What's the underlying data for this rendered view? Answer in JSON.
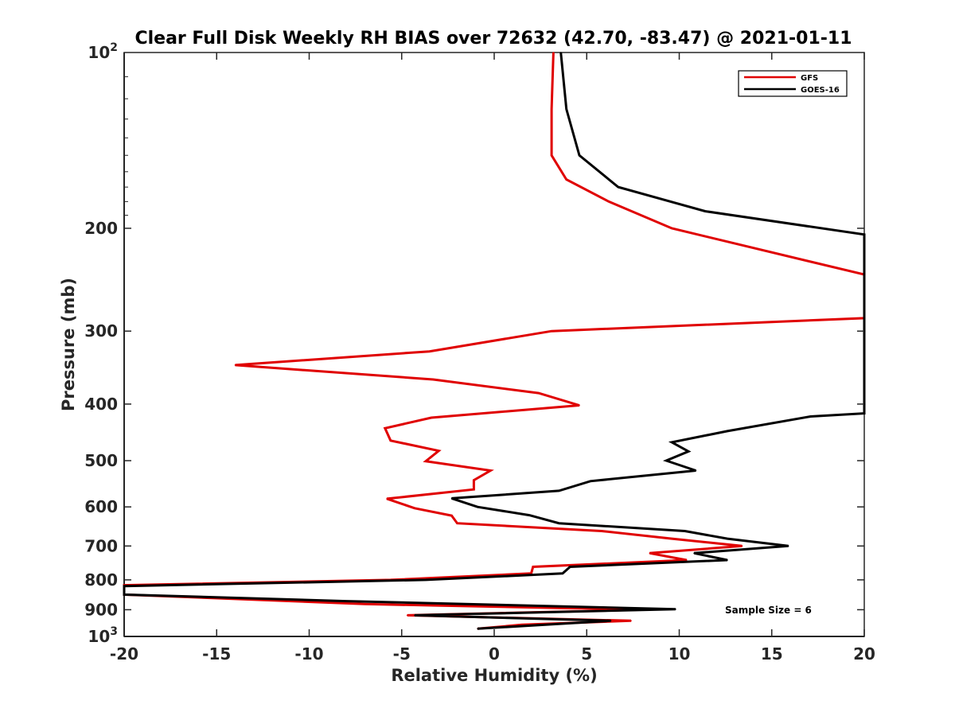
{
  "chart_data": {
    "type": "line",
    "title": "Clear Full Disk Weekly RH BIAS over 72632 (42.70, -83.47) @ 2021-01-11",
    "xlabel": "Relative Humidity (%)",
    "ylabel": "Pressure (mb)",
    "xlim": [
      -20,
      20
    ],
    "ylim": [
      100,
      1000
    ],
    "yscale": "log",
    "y_reversed": true,
    "grid": false,
    "legend_position": "top-right",
    "annotation": "Sample Size = 6",
    "x_ticks": [
      "-20",
      "-15",
      "-10",
      "-5",
      "0",
      "5",
      "10",
      "15",
      "20"
    ],
    "y_ticks": [
      {
        "value": 200,
        "label": "200"
      },
      {
        "value": 300,
        "label": "300"
      },
      {
        "value": 400,
        "label": "400"
      },
      {
        "value": 500,
        "label": "500"
      },
      {
        "value": 600,
        "label": "600"
      },
      {
        "value": 700,
        "label": "700"
      },
      {
        "value": 800,
        "label": "800"
      },
      {
        "value": 900,
        "label": "900"
      }
    ],
    "y_tick_top": {
      "base": "10",
      "exp": "2",
      "value": 100
    },
    "y_tick_bottom": {
      "base": "10",
      "exp": "3",
      "value": 1000
    },
    "series": [
      {
        "name": "GFS",
        "color": "#e00000",
        "points": [
          [
            3.2,
            100
          ],
          [
            3.1,
            125
          ],
          [
            3.1,
            150
          ],
          [
            3.9,
            165
          ],
          [
            6.2,
            180
          ],
          [
            9.6,
            200
          ],
          [
            20,
            240
          ],
          [
            20,
            285
          ],
          [
            3.1,
            300
          ],
          [
            -3.5,
            325
          ],
          [
            -14,
            343
          ],
          [
            -3.3,
            363
          ],
          [
            2.4,
            383
          ],
          [
            4.6,
            402
          ],
          [
            -3.4,
            422
          ],
          [
            -5.9,
            440
          ],
          [
            -5.6,
            462
          ],
          [
            -3.0,
            481
          ],
          [
            -3.7,
            501
          ],
          [
            -0.2,
            520
          ],
          [
            -1.1,
            540
          ],
          [
            -1.1,
            560
          ],
          [
            -5.8,
            581
          ],
          [
            -4.3,
            603
          ],
          [
            -2.3,
            621
          ],
          [
            -2.0,
            640
          ],
          [
            5.8,
            660
          ],
          [
            9.6,
            680
          ],
          [
            13.4,
            700
          ],
          [
            8.4,
            720
          ],
          [
            10.4,
            740
          ],
          [
            2.1,
            760
          ],
          [
            2.0,
            780
          ],
          [
            -5.6,
            800
          ],
          [
            -20,
            817
          ],
          [
            -20,
            848
          ],
          [
            -7.0,
            880
          ],
          [
            8.0,
            900
          ],
          [
            -4.7,
            920
          ],
          [
            7.4,
            940
          ],
          [
            1.5,
            955
          ],
          [
            -0.9,
            970
          ]
        ]
      },
      {
        "name": "GOES-16",
        "color": "#000000",
        "points": [
          [
            3.6,
            100
          ],
          [
            3.9,
            125
          ],
          [
            4.6,
            150
          ],
          [
            6.7,
            170
          ],
          [
            11.4,
            187
          ],
          [
            20,
            205
          ],
          [
            20,
            415
          ],
          [
            17.1,
            420
          ],
          [
            12.6,
            445
          ],
          [
            9.6,
            465
          ],
          [
            10.5,
            482
          ],
          [
            9.3,
            500
          ],
          [
            10.9,
            520
          ],
          [
            5.2,
            542
          ],
          [
            3.5,
            563
          ],
          [
            -2.3,
            580
          ],
          [
            -0.9,
            600
          ],
          [
            1.9,
            620
          ],
          [
            3.5,
            640
          ],
          [
            10.3,
            660
          ],
          [
            12.6,
            680
          ],
          [
            15.9,
            700
          ],
          [
            10.8,
            720
          ],
          [
            12.6,
            740
          ],
          [
            4.1,
            760
          ],
          [
            3.7,
            780
          ],
          [
            -3.7,
            800
          ],
          [
            -20,
            820
          ],
          [
            -20,
            848
          ],
          [
            -8.0,
            870
          ],
          [
            9.8,
            898
          ],
          [
            -4.3,
            920
          ],
          [
            6.3,
            940
          ],
          [
            -0.9,
            970
          ]
        ]
      }
    ]
  }
}
